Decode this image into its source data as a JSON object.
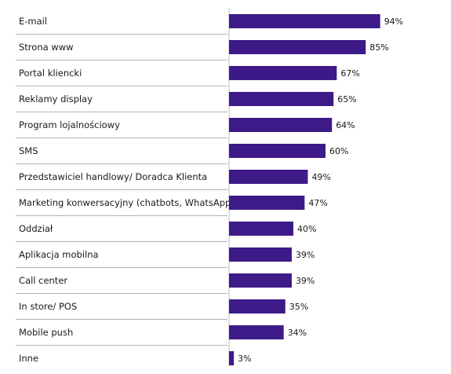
{
  "chart_data": {
    "type": "bar",
    "orientation": "horizontal",
    "title": "",
    "xlabel": "",
    "ylabel": "",
    "xlim": [
      0,
      100
    ],
    "grid": false,
    "legend": "none",
    "value_suffix": "%",
    "bar_color": "#3d1a87",
    "categories": [
      "E-mail",
      "Strona www",
      "Portal kliencki",
      "Reklamy display",
      "Program lojalnościowy",
      "SMS",
      "Przedstawiciel handlowy/ Doradca Klienta",
      "Marketing konwersacyjny (chatbots, WhatsApp)",
      "Oddział",
      "Aplikacja mobilna",
      "Call center",
      "In store/ POS",
      "Mobile push",
      "Inne"
    ],
    "values": [
      94,
      85,
      67,
      65,
      64,
      60,
      49,
      47,
      40,
      39,
      39,
      35,
      34,
      3
    ],
    "value_labels": [
      "94%",
      "85%",
      "67%",
      "65%",
      "64%",
      "60%",
      "49%",
      "47%",
      "40%",
      "39%",
      "39%",
      "35%",
      "34%",
      "3%"
    ]
  }
}
